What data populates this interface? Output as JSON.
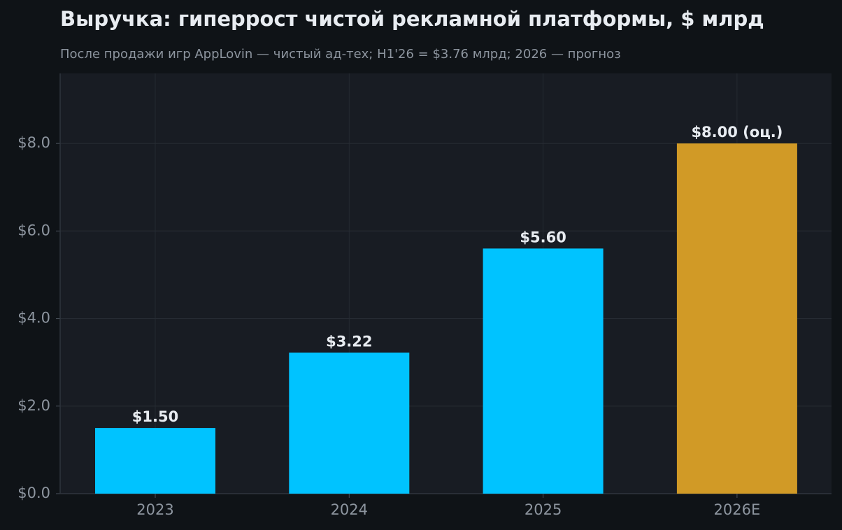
{
  "chart_data": {
    "type": "bar",
    "title": "Выручка: гиперрост чистой рекламной платформы, $ млрд",
    "subtitle": "После продажи игр AppLovin — чистый ад-тех; H1'26 = $3.76 млрд; 2026 — прогноз",
    "categories": [
      "2023",
      "2024",
      "2025",
      "2026E"
    ],
    "values": [
      1.5,
      3.22,
      5.6,
      8.0
    ],
    "value_labels": [
      "$1.50",
      "$3.22",
      "$5.60",
      "$8.00 (оц.)"
    ],
    "colors": [
      "#00c3ff",
      "#00c3ff",
      "#00c3ff",
      "#d19a26"
    ],
    "ylim": [
      0,
      9.6
    ],
    "yticks": [
      {
        "value": 0,
        "label": "$0.0"
      },
      {
        "value": 2,
        "label": "$2.0"
      },
      {
        "value": 4,
        "label": "$4.0"
      },
      {
        "value": 6,
        "label": "$6.0"
      },
      {
        "value": 8,
        "label": "$8.0"
      }
    ],
    "grid": true
  }
}
